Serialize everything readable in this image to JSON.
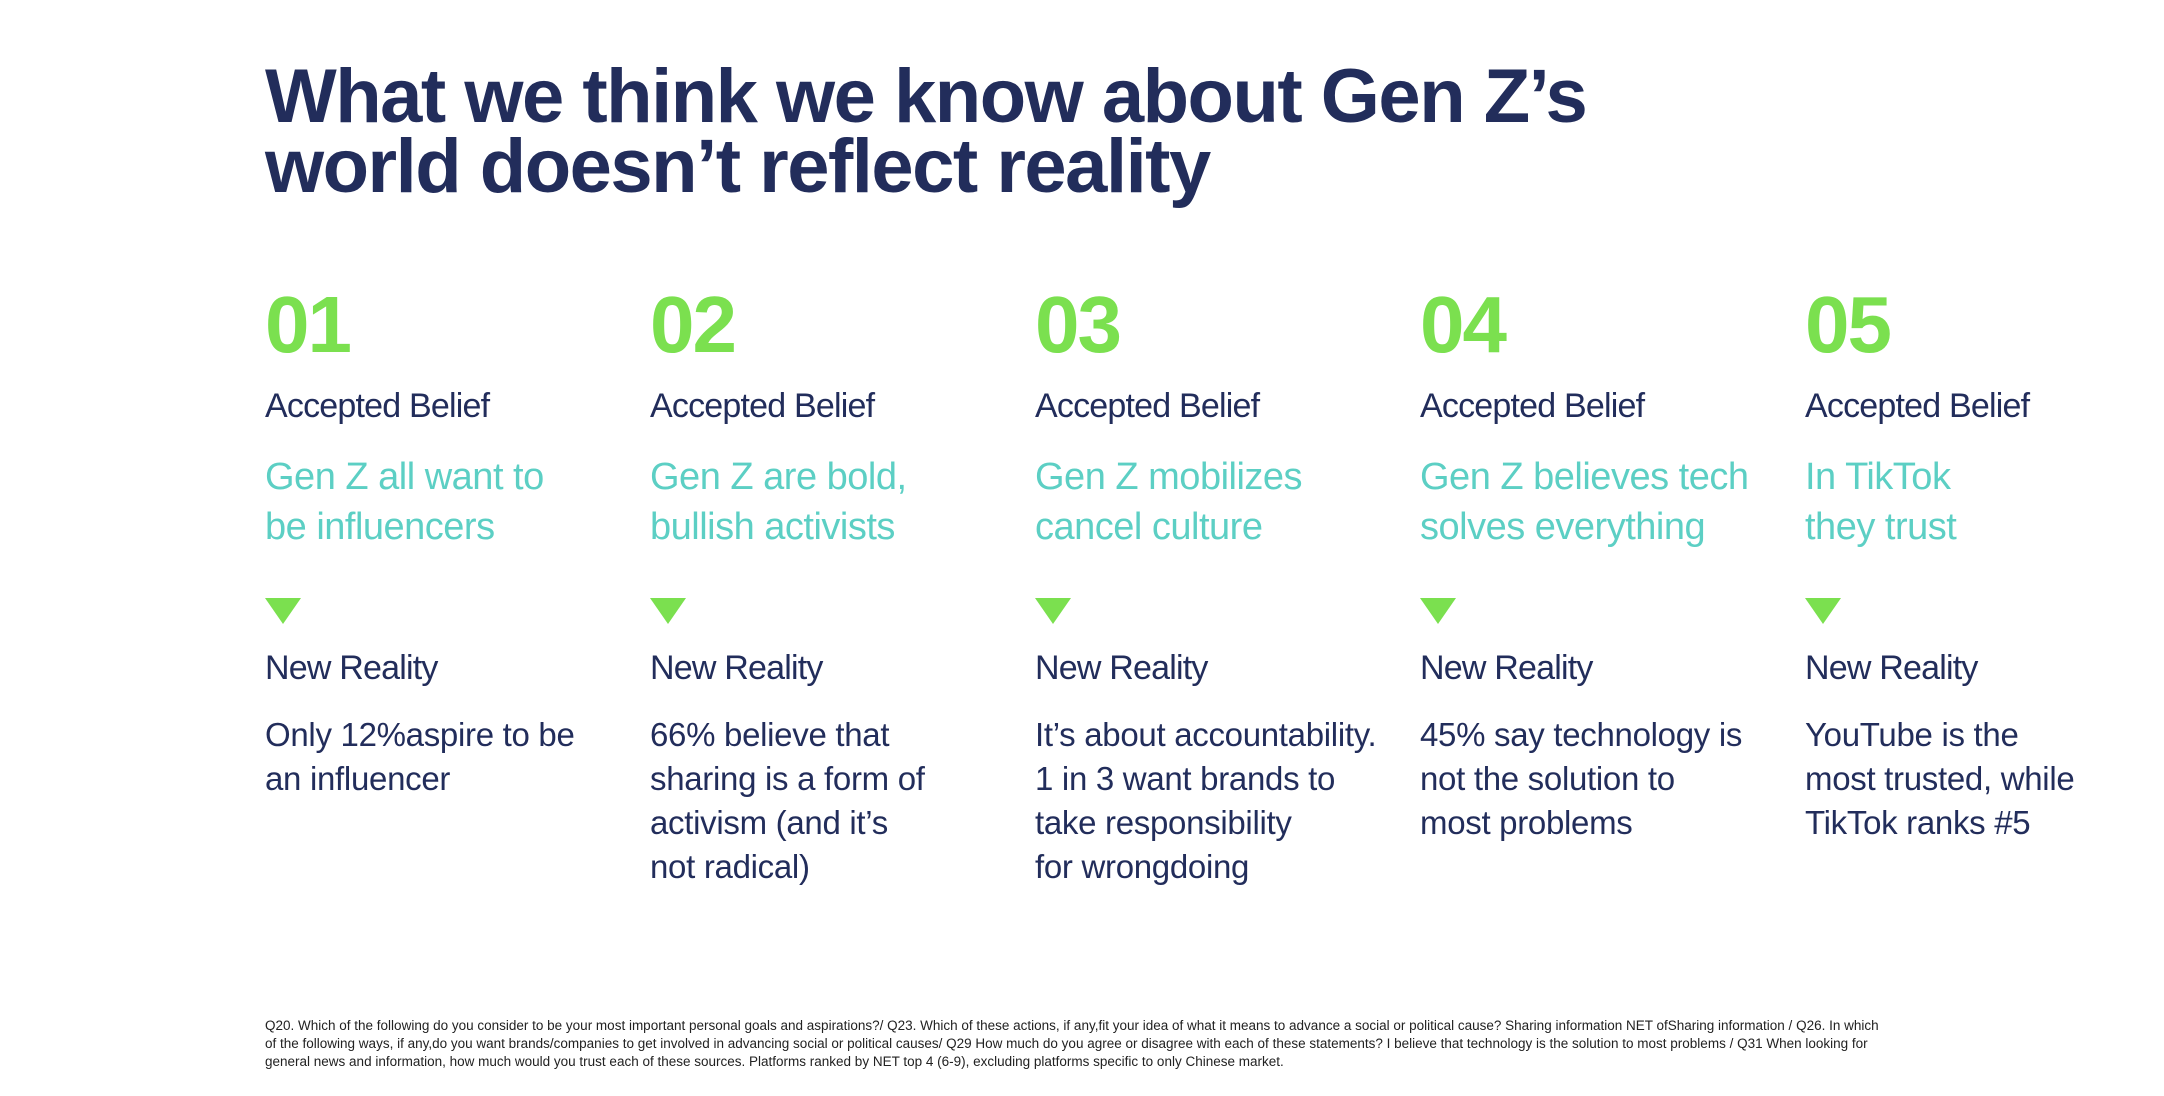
{
  "title": "What we think we know about Gen Z’s\nworld doesn’t reflect reality",
  "colors": {
    "navy": "#222d5b",
    "green": "#7be04f",
    "teal": "#5ccfc4"
  },
  "columns": [
    {
      "number": "01",
      "belief_label": "Accepted Belief",
      "belief": "Gen Z all want to\nbe influencers",
      "reality_label": "New Reality",
      "reality": "Only 12%aspire to be\nan influencer"
    },
    {
      "number": "02",
      "belief_label": "Accepted Belief",
      "belief": "Gen Z are bold,\nbullish activists",
      "reality_label": "New Reality",
      "reality": "66% believe that\nsharing is a form of\nactivism (and it’s\nnot radical)"
    },
    {
      "number": "03",
      "belief_label": "Accepted Belief",
      "belief": "Gen Z mobilizes\ncancel culture",
      "reality_label": "New Reality",
      "reality": "It’s about accountability.\n1 in 3 want brands to\ntake responsibility\nfor wrongdoing"
    },
    {
      "number": "04",
      "belief_label": "Accepted Belief",
      "belief": "Gen Z believes tech\nsolves everything",
      "reality_label": "New Reality",
      "reality": "45% say technology is\nnot the solution to\nmost problems"
    },
    {
      "number": "05",
      "belief_label": "Accepted Belief",
      "belief": "In TikTok\nthey trust",
      "reality_label": "New Reality",
      "reality": "YouTube is the\nmost trusted, while\nTikTok ranks #5"
    }
  ],
  "footnote": "Q20. Which of the following do you consider to be your most important personal goals and aspirations?/ Q23. Which of these actions, if any,fit your idea of what it means to advance a social or political cause? Sharing information NET ofSharing information / Q26. In which of the following ways, if any,do you want brands/companies to get involved in advancing social or political causes/ Q29 How much do you agree or disagree with each of these statements? I believe that technology is the solution to most problems / Q31 When looking for general news and information, how much would you trust each of these sources. Platforms ranked by NET top 4 (6-9), excluding platforms specific to only Chinese market."
}
